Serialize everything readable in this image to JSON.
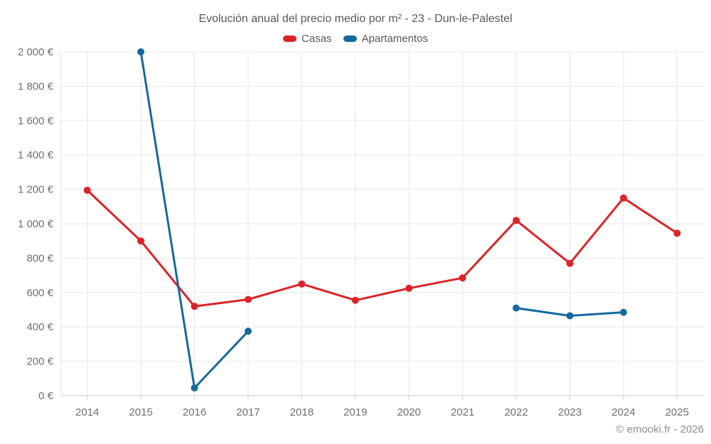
{
  "credits": "© emooki.fr - 2026",
  "colors": {
    "casas": "#dc2428",
    "apartamentos": "#16699e",
    "grid": "#e7e7e7",
    "axis_line": "#cfcfcf",
    "axis_text": "#6f6f6f",
    "title_text": "#58585a"
  },
  "axis": {
    "y_tick_labels": [
      "0 €",
      "200 €",
      "400 €",
      "600 €",
      "800 €",
      "1 000 €",
      "1 200 €",
      "1 400 €",
      "1 600 €",
      "1 800 €",
      "2 000 €"
    ]
  },
  "chart_data": {
    "type": "line",
    "title": "Evolución anual del precio medio por m² - 23 - Dun-le-Palestel",
    "categories": [
      "2014",
      "2015",
      "2016",
      "2017",
      "2018",
      "2019",
      "2020",
      "2021",
      "2022",
      "2023",
      "2024",
      "2025"
    ],
    "series": [
      {
        "name": "Casas",
        "color": "#dc2428",
        "values": [
          1195,
          900,
          520,
          560,
          650,
          555,
          625,
          685,
          1020,
          770,
          1150,
          945
        ]
      },
      {
        "name": "Apartamentos",
        "color": "#16699e",
        "values": [
          null,
          2000,
          45,
          375,
          null,
          null,
          null,
          null,
          510,
          465,
          485,
          null
        ]
      }
    ],
    "xlabel": "",
    "ylabel": "",
    "ylim": [
      0,
      2000
    ],
    "ytick_step": 200,
    "y_unit": "€",
    "grid": true,
    "legend_position": "top"
  }
}
